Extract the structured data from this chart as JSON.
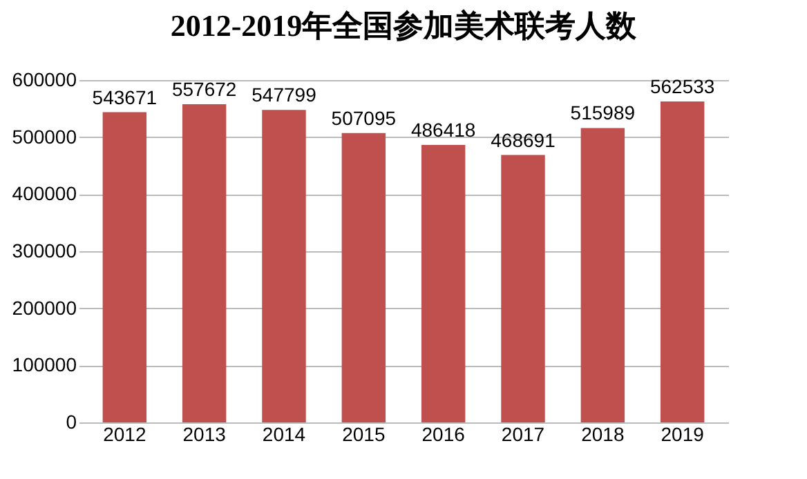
{
  "chart_data": {
    "type": "bar",
    "title": "2012-2019年全国参加美术联考人数",
    "categories": [
      "2012",
      "2013",
      "2014",
      "2015",
      "2016",
      "2017",
      "2018",
      "2019"
    ],
    "values": [
      543671,
      557672,
      547799,
      507095,
      486418,
      468691,
      515989,
      562533
    ],
    "color": "#c0504d",
    "ylim": [
      0,
      600000
    ],
    "yticks": [
      0,
      100000,
      200000,
      300000,
      400000,
      500000,
      600000
    ],
    "grid": "y",
    "data_labels": true
  }
}
